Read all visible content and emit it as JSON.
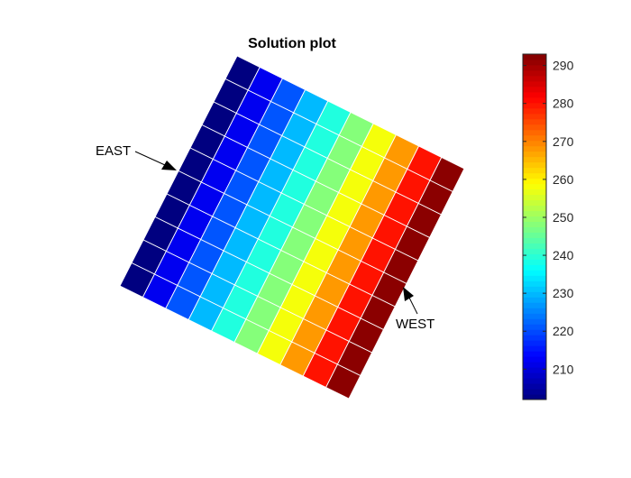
{
  "chart_data": {
    "type": "heatmap",
    "title": "Solution plot",
    "xlabel": "",
    "ylabel": "",
    "grid": "10 x 10 quadrilateral mesh, rotated square domain",
    "colormap": "jet",
    "colorbar": {
      "location": "right",
      "limits": [
        202,
        293
      ],
      "ticks": [
        210,
        220,
        230,
        240,
        250,
        260,
        270,
        280,
        290
      ],
      "tick_labels": [
        "210",
        "220",
        "230",
        "240",
        "250",
        "260",
        "270",
        "280",
        "290"
      ]
    },
    "column_values": [
      202,
      212,
      221,
      230,
      239,
      248,
      258,
      268,
      280,
      292
    ],
    "annotations": [
      {
        "text": "EAST",
        "points_to": "left edge of domain"
      },
      {
        "text": "WEST",
        "points_to": "right edge of domain"
      }
    ]
  }
}
